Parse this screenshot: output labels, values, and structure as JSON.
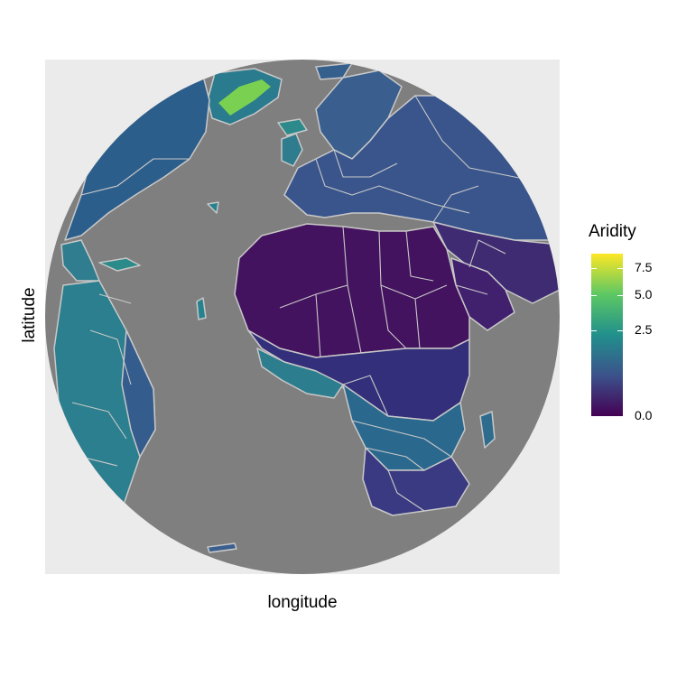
{
  "map": {
    "x_axis_title": "longitude",
    "y_axis_title": "latitude",
    "panel_background": "#ebebeb",
    "ocean_color": "#7f7f7f",
    "border_color": "#c8c8c8",
    "projection": "orthographic"
  },
  "legend": {
    "title": "Aridity",
    "palette": "viridis",
    "colors": [
      "#440154",
      "#3b528b",
      "#21908c",
      "#5dc863",
      "#fde725"
    ],
    "range": [
      0,
      9
    ],
    "scale": "square-root",
    "ticks": [
      {
        "value": 0,
        "label": "0.0"
      },
      {
        "value": 2.5,
        "label": "2.5"
      },
      {
        "value": 5,
        "label": "5.0"
      },
      {
        "value": 7.5,
        "label": "7.5"
      }
    ]
  }
}
